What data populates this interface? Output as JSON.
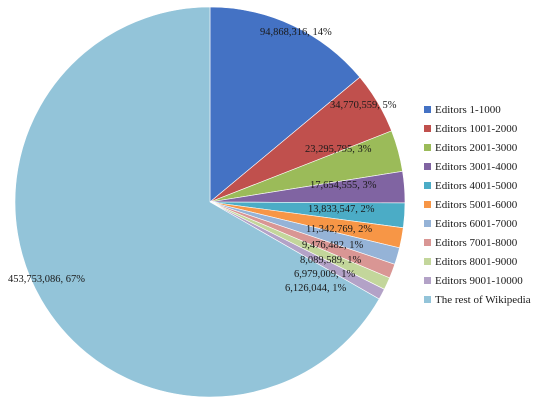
{
  "chart_data": {
    "type": "pie",
    "title": "",
    "legend_position": "right",
    "slices": [
      {
        "name": "Editors 1-1000",
        "value": 94868316,
        "percent": 14,
        "label": "94,868,316, 14%",
        "color": "#4472c4"
      },
      {
        "name": "Editors 1001-2000",
        "value": 34770559,
        "percent": 5,
        "label": "34,770,559, 5%",
        "color": "#c0504d"
      },
      {
        "name": "Editors 2001-3000",
        "value": 23295795,
        "percent": 3,
        "label": "23,295,795, 3%",
        "color": "#9bbb59"
      },
      {
        "name": "Editors 3001-4000",
        "value": 17654555,
        "percent": 3,
        "label": "17,654,555, 3%",
        "color": "#8064a2"
      },
      {
        "name": "Editors 4001-5000",
        "value": 13833547,
        "percent": 2,
        "label": "13,833,547, 2%",
        "color": "#4bacc6"
      },
      {
        "name": "Editors 5001-6000",
        "value": 11342769,
        "percent": 2,
        "label": "11,342,769, 2%",
        "color": "#f79646"
      },
      {
        "name": "Editors 6001-7000",
        "value": 9476482,
        "percent": 1,
        "label": "9,476,482, 1%",
        "color": "#95b3d7"
      },
      {
        "name": "Editors 7001-8000",
        "value": 8089589,
        "percent": 1,
        "label": "8,089,589, 1%",
        "color": "#d99694"
      },
      {
        "name": "Editors 8001-9000",
        "value": 6979009,
        "percent": 1,
        "label": "6,979,009, 1%",
        "color": "#c3d69b"
      },
      {
        "name": "Editors 9001-10000",
        "value": 6126044,
        "percent": 1,
        "label": "6,126,044, 1%",
        "color": "#b3a2c7"
      },
      {
        "name": "The rest of Wikipedia",
        "value": 453753086,
        "percent": 67,
        "label": "453,753,086, 67%",
        "color": "#93c4d9"
      }
    ]
  }
}
